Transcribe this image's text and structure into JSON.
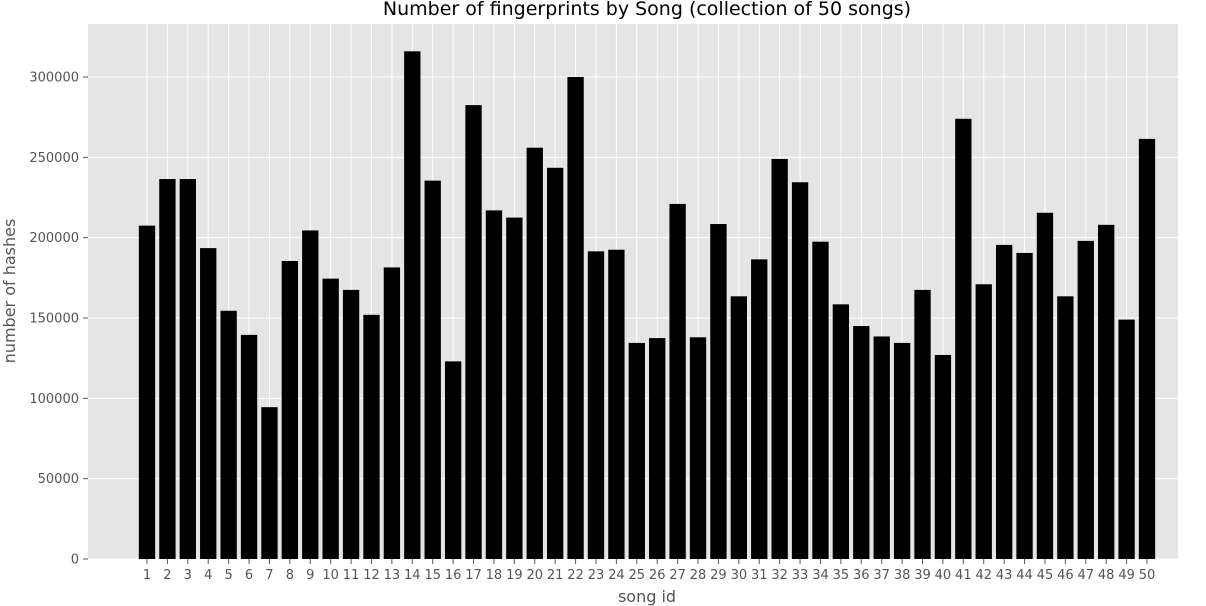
{
  "chart_data": {
    "type": "bar",
    "title": "Number of fingerprints by Song (collection of 50 songs)",
    "xlabel": "song id",
    "ylabel": "number of hashes",
    "categories": [
      "1",
      "2",
      "3",
      "4",
      "5",
      "6",
      "7",
      "8",
      "9",
      "10",
      "11",
      "12",
      "13",
      "14",
      "15",
      "16",
      "17",
      "18",
      "19",
      "20",
      "21",
      "22",
      "23",
      "24",
      "25",
      "26",
      "27",
      "28",
      "29",
      "30",
      "31",
      "32",
      "33",
      "34",
      "35",
      "36",
      "37",
      "38",
      "39",
      "40",
      "41",
      "42",
      "43",
      "44",
      "45",
      "46",
      "47",
      "48",
      "49",
      "50"
    ],
    "values": [
      207500,
      236500,
      236500,
      193500,
      154500,
      139500,
      94500,
      185500,
      204500,
      174500,
      167500,
      152000,
      181500,
      316000,
      235500,
      123000,
      282500,
      217000,
      212500,
      256000,
      243500,
      300000,
      191500,
      192500,
      134500,
      137500,
      221000,
      138000,
      208500,
      163500,
      186500,
      249000,
      234500,
      197500,
      158500,
      145000,
      138500,
      134500,
      167500,
      127000,
      274000,
      171000,
      195500,
      190500,
      215500,
      163500,
      198000,
      208000,
      149000,
      261500
    ],
    "yticks": [
      0,
      50000,
      100000,
      150000,
      200000,
      250000,
      300000
    ],
    "ylim": [
      0,
      333000
    ],
    "grid": true,
    "colors": {
      "bar": "#000000",
      "plot_background": "#e5e5e5",
      "grid": "#ffffff",
      "tick_text": "#555555"
    }
  }
}
